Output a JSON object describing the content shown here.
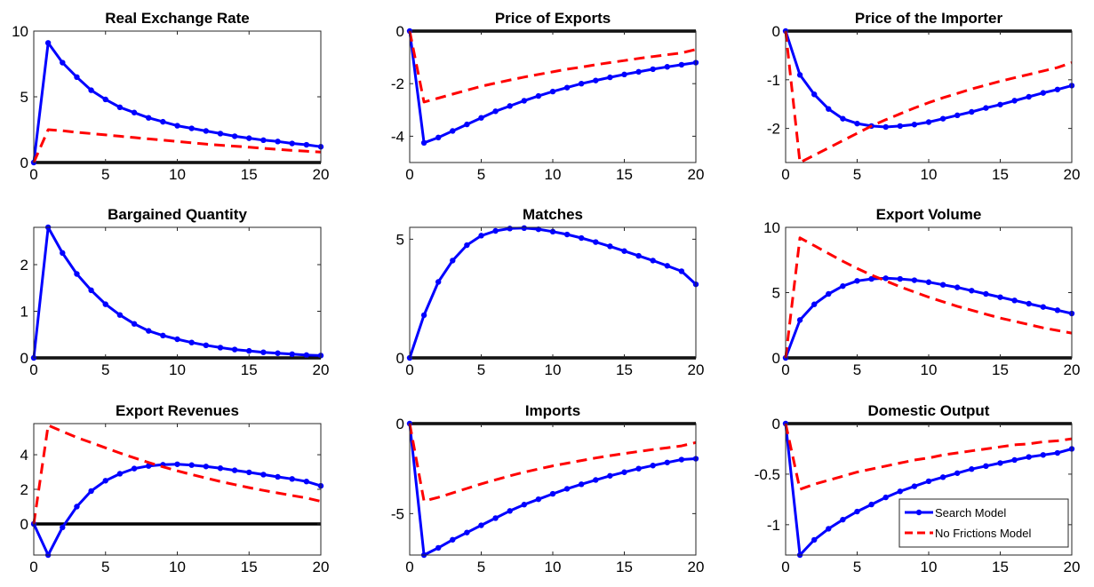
{
  "colors": {
    "search": "#0000ff",
    "no_frictions": "#ff0000",
    "zero_line": "#000000"
  },
  "legend": {
    "placement": "bottom-right of Domestic Output panel",
    "search_label": "Search Model",
    "no_frictions_label": "No Frictions Model"
  },
  "chart_data": [
    {
      "type": "line",
      "title": "Real Exchange Rate",
      "xlim": [
        0,
        20
      ],
      "ylim": [
        0,
        10
      ],
      "xticks": [
        0,
        5,
        10,
        15,
        20
      ],
      "yticks": [
        0,
        5,
        10
      ],
      "x": [
        0,
        1,
        2,
        3,
        4,
        5,
        6,
        7,
        8,
        9,
        10,
        11,
        12,
        13,
        14,
        15,
        16,
        17,
        18,
        19,
        20
      ],
      "series": [
        {
          "name": "Search Model",
          "style": "solid-markers",
          "values": [
            0,
            9.1,
            7.6,
            6.5,
            5.5,
            4.8,
            4.2,
            3.8,
            3.4,
            3.1,
            2.8,
            2.6,
            2.4,
            2.2,
            2.0,
            1.85,
            1.7,
            1.6,
            1.45,
            1.35,
            1.2
          ]
        },
        {
          "name": "No Frictions Model",
          "style": "dashed",
          "values": [
            0,
            2.5,
            2.42,
            2.3,
            2.2,
            2.1,
            2.0,
            1.9,
            1.8,
            1.7,
            1.6,
            1.5,
            1.4,
            1.32,
            1.24,
            1.16,
            1.08,
            1.0,
            0.92,
            0.86,
            0.8
          ]
        }
      ]
    },
    {
      "type": "line",
      "title": "Price of Exports",
      "xlim": [
        0,
        20
      ],
      "ylim": [
        -5,
        0
      ],
      "xticks": [
        0,
        5,
        10,
        15,
        20
      ],
      "yticks": [
        -4,
        -2,
        0
      ],
      "x": [
        0,
        1,
        2,
        3,
        4,
        5,
        6,
        7,
        8,
        9,
        10,
        11,
        12,
        13,
        14,
        15,
        16,
        17,
        18,
        19,
        20
      ],
      "series": [
        {
          "name": "Search Model",
          "style": "solid-markers",
          "values": [
            0,
            -4.25,
            -4.05,
            -3.8,
            -3.55,
            -3.3,
            -3.05,
            -2.85,
            -2.65,
            -2.47,
            -2.3,
            -2.15,
            -2.0,
            -1.88,
            -1.76,
            -1.65,
            -1.55,
            -1.45,
            -1.36,
            -1.28,
            -1.2
          ]
        },
        {
          "name": "No Frictions Model",
          "style": "dashed",
          "values": [
            0,
            -2.7,
            -2.55,
            -2.4,
            -2.25,
            -2.1,
            -1.98,
            -1.86,
            -1.75,
            -1.65,
            -1.55,
            -1.45,
            -1.37,
            -1.28,
            -1.2,
            -1.12,
            -1.04,
            -0.97,
            -0.9,
            -0.83,
            -0.7
          ]
        }
      ]
    },
    {
      "type": "line",
      "title": "Price of the Importer",
      "xlim": [
        0,
        20
      ],
      "ylim": [
        -2.7,
        0
      ],
      "xticks": [
        0,
        5,
        10,
        15,
        20
      ],
      "yticks": [
        -2,
        -1,
        0
      ],
      "x": [
        0,
        1,
        2,
        3,
        4,
        5,
        6,
        7,
        8,
        9,
        10,
        11,
        12,
        13,
        14,
        15,
        16,
        17,
        18,
        19,
        20
      ],
      "series": [
        {
          "name": "Search Model",
          "style": "solid-markers",
          "values": [
            0,
            -0.9,
            -1.3,
            -1.6,
            -1.8,
            -1.9,
            -1.95,
            -1.97,
            -1.95,
            -1.92,
            -1.87,
            -1.8,
            -1.73,
            -1.66,
            -1.58,
            -1.51,
            -1.43,
            -1.35,
            -1.27,
            -1.2,
            -1.12
          ]
        },
        {
          "name": "No Frictions Model",
          "style": "dashed",
          "values": [
            0,
            -2.7,
            -2.55,
            -2.4,
            -2.25,
            -2.1,
            -1.95,
            -1.82,
            -1.7,
            -1.58,
            -1.47,
            -1.37,
            -1.28,
            -1.19,
            -1.11,
            -1.03,
            -0.96,
            -0.89,
            -0.82,
            -0.75,
            -0.65
          ]
        }
      ]
    },
    {
      "type": "line",
      "title": "Bargained Quantity",
      "xlim": [
        0,
        20
      ],
      "ylim": [
        0,
        2.8
      ],
      "xticks": [
        0,
        5,
        10,
        15,
        20
      ],
      "yticks": [
        0,
        1,
        2
      ],
      "x": [
        0,
        1,
        2,
        3,
        4,
        5,
        6,
        7,
        8,
        9,
        10,
        11,
        12,
        13,
        14,
        15,
        16,
        17,
        18,
        19,
        20
      ],
      "series": [
        {
          "name": "Search Model",
          "style": "solid-markers",
          "values": [
            0,
            2.8,
            2.25,
            1.8,
            1.45,
            1.15,
            0.92,
            0.73,
            0.58,
            0.48,
            0.4,
            0.33,
            0.27,
            0.22,
            0.18,
            0.15,
            0.12,
            0.1,
            0.08,
            0.06,
            0.05
          ]
        }
      ]
    },
    {
      "type": "line",
      "title": "Matches",
      "xlim": [
        0,
        20
      ],
      "ylim": [
        0,
        5.5
      ],
      "xticks": [
        0,
        5,
        10,
        15,
        20
      ],
      "yticks": [
        0,
        5
      ],
      "x": [
        0,
        1,
        2,
        3,
        4,
        5,
        6,
        7,
        8,
        9,
        10,
        11,
        12,
        13,
        14,
        15,
        16,
        17,
        18,
        19,
        20
      ],
      "series": [
        {
          "name": "Search Model",
          "style": "solid-markers",
          "values": [
            0,
            1.8,
            3.2,
            4.1,
            4.75,
            5.15,
            5.35,
            5.45,
            5.47,
            5.42,
            5.32,
            5.2,
            5.05,
            4.88,
            4.7,
            4.5,
            4.3,
            4.1,
            3.88,
            3.65,
            3.1
          ]
        }
      ]
    },
    {
      "type": "line",
      "title": "Export Volume",
      "xlim": [
        0,
        20
      ],
      "ylim": [
        0,
        10
      ],
      "xticks": [
        0,
        5,
        10,
        15,
        20
      ],
      "yticks": [
        0,
        5,
        10
      ],
      "x": [
        0,
        1,
        2,
        3,
        4,
        5,
        6,
        7,
        8,
        9,
        10,
        11,
        12,
        13,
        14,
        15,
        16,
        17,
        18,
        19,
        20
      ],
      "series": [
        {
          "name": "Search Model",
          "style": "solid-markers",
          "values": [
            0,
            2.9,
            4.1,
            4.9,
            5.5,
            5.9,
            6.05,
            6.1,
            6.05,
            5.95,
            5.8,
            5.6,
            5.4,
            5.15,
            4.9,
            4.65,
            4.4,
            4.15,
            3.9,
            3.65,
            3.4
          ]
        },
        {
          "name": "No Frictions Model",
          "style": "dashed",
          "values": [
            0,
            9.2,
            8.6,
            8.0,
            7.4,
            6.85,
            6.35,
            5.9,
            5.45,
            5.05,
            4.65,
            4.3,
            3.95,
            3.65,
            3.35,
            3.05,
            2.8,
            2.55,
            2.3,
            2.1,
            1.9
          ]
        }
      ]
    },
    {
      "type": "line",
      "title": "Export Revenues",
      "xlim": [
        0,
        20
      ],
      "ylim": [
        -1.8,
        5.8
      ],
      "xticks": [
        0,
        5,
        10,
        15,
        20
      ],
      "yticks": [
        0,
        2,
        4
      ],
      "x": [
        0,
        1,
        2,
        3,
        4,
        5,
        6,
        7,
        8,
        9,
        10,
        11,
        12,
        13,
        14,
        15,
        16,
        17,
        18,
        19,
        20
      ],
      "series": [
        {
          "name": "Search Model",
          "style": "solid-markers",
          "values": [
            0,
            -1.8,
            -0.2,
            1.0,
            1.9,
            2.5,
            2.9,
            3.2,
            3.35,
            3.42,
            3.45,
            3.4,
            3.32,
            3.22,
            3.1,
            2.98,
            2.85,
            2.72,
            2.6,
            2.45,
            2.2
          ]
        },
        {
          "name": "No Frictions Model",
          "style": "dashed",
          "values": [
            0,
            5.7,
            5.35,
            5.0,
            4.7,
            4.4,
            4.1,
            3.82,
            3.55,
            3.3,
            3.07,
            2.85,
            2.65,
            2.45,
            2.27,
            2.1,
            1.94,
            1.79,
            1.64,
            1.5,
            1.3
          ]
        }
      ]
    },
    {
      "type": "line",
      "title": "Imports",
      "xlim": [
        0,
        20
      ],
      "ylim": [
        -7.3,
        0
      ],
      "xticks": [
        0,
        5,
        10,
        15,
        20
      ],
      "yticks": [
        -5,
        0
      ],
      "x": [
        0,
        1,
        2,
        3,
        4,
        5,
        6,
        7,
        8,
        9,
        10,
        11,
        12,
        13,
        14,
        15,
        16,
        17,
        18,
        19,
        20
      ],
      "series": [
        {
          "name": "Search Model",
          "style": "solid-markers",
          "values": [
            0,
            -7.3,
            -6.9,
            -6.45,
            -6.05,
            -5.65,
            -5.25,
            -4.85,
            -4.5,
            -4.2,
            -3.9,
            -3.62,
            -3.37,
            -3.13,
            -2.9,
            -2.7,
            -2.5,
            -2.33,
            -2.16,
            -2.0,
            -1.95
          ]
        },
        {
          "name": "No Frictions Model",
          "style": "dashed",
          "values": [
            0,
            -4.3,
            -4.1,
            -3.85,
            -3.6,
            -3.35,
            -3.12,
            -2.9,
            -2.7,
            -2.52,
            -2.35,
            -2.2,
            -2.05,
            -1.91,
            -1.78,
            -1.66,
            -1.55,
            -1.44,
            -1.34,
            -1.24,
            -1.05
          ]
        }
      ]
    },
    {
      "type": "line",
      "title": "Domestic Output",
      "xlim": [
        0,
        20
      ],
      "ylim": [
        -1.3,
        0
      ],
      "xticks": [
        0,
        5,
        10,
        15,
        20
      ],
      "yticks": [
        -1,
        -0.5,
        0
      ],
      "x": [
        0,
        1,
        2,
        3,
        4,
        5,
        6,
        7,
        8,
        9,
        10,
        11,
        12,
        13,
        14,
        15,
        16,
        17,
        18,
        19,
        20
      ],
      "series": [
        {
          "name": "Search Model",
          "style": "solid-markers",
          "values": [
            0,
            -1.3,
            -1.15,
            -1.04,
            -0.95,
            -0.87,
            -0.8,
            -0.73,
            -0.67,
            -0.62,
            -0.57,
            -0.53,
            -0.49,
            -0.45,
            -0.42,
            -0.39,
            -0.36,
            -0.33,
            -0.31,
            -0.29,
            -0.25
          ]
        },
        {
          "name": "No Frictions Model",
          "style": "dashed",
          "values": [
            0,
            -0.65,
            -0.6,
            -0.56,
            -0.52,
            -0.48,
            -0.45,
            -0.42,
            -0.39,
            -0.36,
            -0.34,
            -0.31,
            -0.29,
            -0.27,
            -0.25,
            -0.23,
            -0.21,
            -0.2,
            -0.18,
            -0.17,
            -0.15
          ]
        }
      ]
    }
  ]
}
